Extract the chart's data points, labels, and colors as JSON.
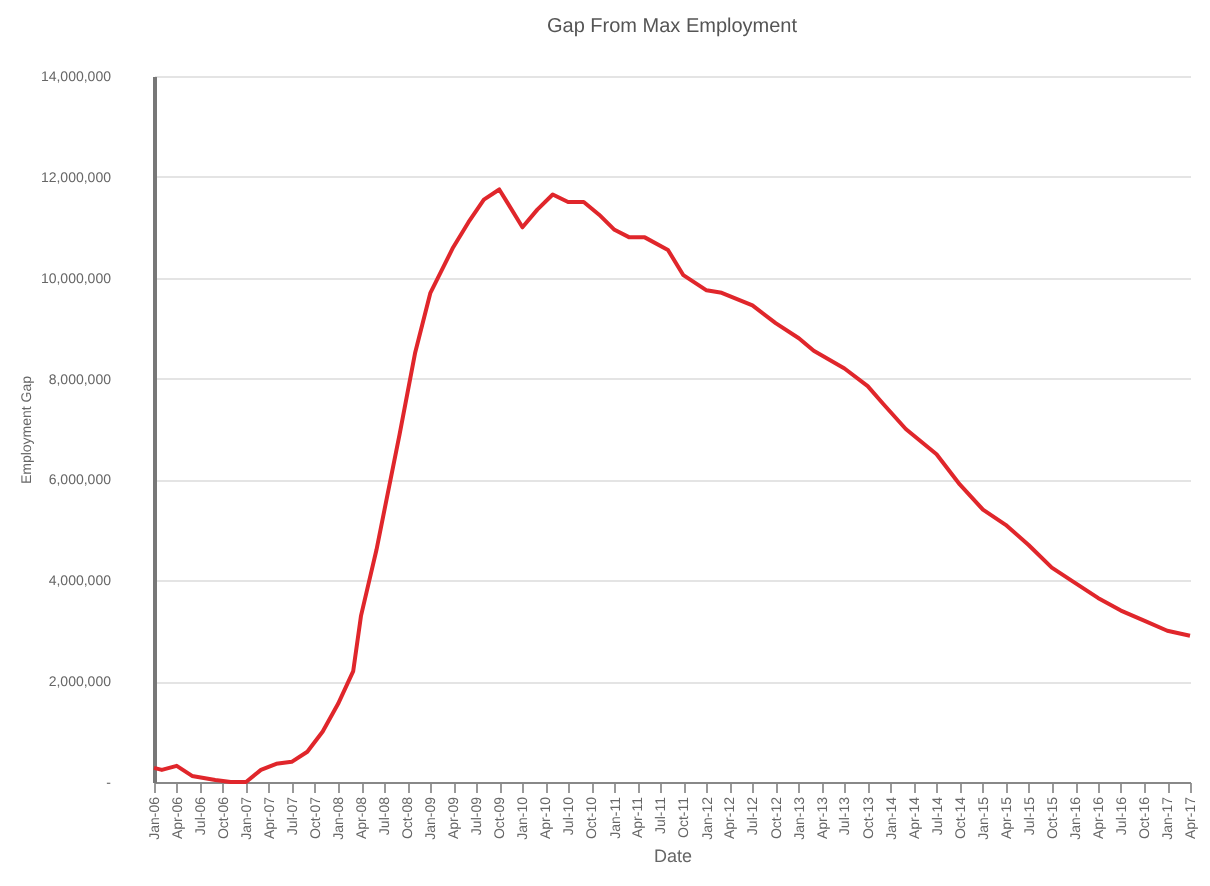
{
  "chart_data": {
    "type": "line",
    "title": "Gap From Max Employment",
    "xlabel": "Date",
    "ylabel": "Employment Gap",
    "x": [
      "2006-01",
      "2006-02",
      "2006-04",
      "2006-06",
      "2006-09",
      "2006-11",
      "2007-01",
      "2007-03",
      "2007-05",
      "2007-07",
      "2007-09",
      "2007-11",
      "2008-01",
      "2008-03",
      "2008-04",
      "2008-06",
      "2008-09",
      "2008-11",
      "2009-01",
      "2009-04",
      "2009-06",
      "2009-08",
      "2009-10",
      "2009-11",
      "2010-01",
      "2010-03",
      "2010-05",
      "2010-07",
      "2010-09",
      "2010-11",
      "2011-01",
      "2011-03",
      "2011-05",
      "2011-08",
      "2011-10",
      "2012-01",
      "2012-03",
      "2012-07",
      "2012-10",
      "2013-01",
      "2013-03",
      "2013-07",
      "2013-10",
      "2013-12",
      "2014-03",
      "2014-07",
      "2014-10",
      "2015-01",
      "2015-04",
      "2015-07",
      "2015-10",
      "2016-01",
      "2016-04",
      "2016-07",
      "2016-10",
      "2017-01",
      "2017-04"
    ],
    "series": [
      {
        "color": "#e0262b",
        "values": [
          280000,
          240000,
          320000,
          120000,
          40000,
          0,
          0,
          240000,
          360000,
          400000,
          600000,
          1000000,
          1550000,
          2200000,
          3300000,
          4600000,
          6900000,
          8500000,
          9700000,
          10600000,
          11100000,
          11550000,
          11750000,
          11500000,
          11000000,
          11350000,
          11650000,
          11500000,
          11500000,
          11250000,
          10950000,
          10800000,
          10800000,
          10550000,
          10050000,
          9750000,
          9700000,
          9450000,
          9100000,
          8800000,
          8550000,
          8200000,
          7850000,
          7500000,
          7000000,
          6500000,
          5900000,
          5400000,
          5100000,
          4700000,
          4250000,
          3950000,
          3650000,
          3400000,
          3200000,
          3000000,
          2900000
        ]
      }
    ],
    "xlim": [
      "2006-01",
      "2017-04"
    ],
    "xticks": [
      {
        "value": "2006-01",
        "label": "Jan-06"
      },
      {
        "value": "2006-04",
        "label": "Apr-06"
      },
      {
        "value": "2006-07",
        "label": "Jul-06"
      },
      {
        "value": "2006-10",
        "label": "Oct-06"
      },
      {
        "value": "2007-01",
        "label": "Jan-07"
      },
      {
        "value": "2007-04",
        "label": "Apr-07"
      },
      {
        "value": "2007-07",
        "label": "Jul-07"
      },
      {
        "value": "2007-10",
        "label": "Oct-07"
      },
      {
        "value": "2008-01",
        "label": "Jan-08"
      },
      {
        "value": "2008-04",
        "label": "Apr-08"
      },
      {
        "value": "2008-07",
        "label": "Jul-08"
      },
      {
        "value": "2008-10",
        "label": "Oct-08"
      },
      {
        "value": "2009-01",
        "label": "Jan-09"
      },
      {
        "value": "2009-04",
        "label": "Apr-09"
      },
      {
        "value": "2009-07",
        "label": "Jul-09"
      },
      {
        "value": "2009-10",
        "label": "Oct-09"
      },
      {
        "value": "2010-01",
        "label": "Jan-10"
      },
      {
        "value": "2010-04",
        "label": "Apr-10"
      },
      {
        "value": "2010-07",
        "label": "Jul-10"
      },
      {
        "value": "2010-10",
        "label": "Oct-10"
      },
      {
        "value": "2011-01",
        "label": "Jan-11"
      },
      {
        "value": "2011-04",
        "label": "Apr-11"
      },
      {
        "value": "2011-07",
        "label": "Jul-11"
      },
      {
        "value": "2011-10",
        "label": "Oct-11"
      },
      {
        "value": "2012-01",
        "label": "Jan-12"
      },
      {
        "value": "2012-04",
        "label": "Apr-12"
      },
      {
        "value": "2012-07",
        "label": "Jul-12"
      },
      {
        "value": "2012-10",
        "label": "Oct-12"
      },
      {
        "value": "2013-01",
        "label": "Jan-13"
      },
      {
        "value": "2013-04",
        "label": "Apr-13"
      },
      {
        "value": "2013-07",
        "label": "Jul-13"
      },
      {
        "value": "2013-10",
        "label": "Oct-13"
      },
      {
        "value": "2014-01",
        "label": "Jan-14"
      },
      {
        "value": "2014-04",
        "label": "Apr-14"
      },
      {
        "value": "2014-07",
        "label": "Jul-14"
      },
      {
        "value": "2014-10",
        "label": "Oct-14"
      },
      {
        "value": "2015-01",
        "label": "Jan-15"
      },
      {
        "value": "2015-04",
        "label": "Apr-15"
      },
      {
        "value": "2015-07",
        "label": "Jul-15"
      },
      {
        "value": "2015-10",
        "label": "Oct-15"
      },
      {
        "value": "2016-01",
        "label": "Jan-16"
      },
      {
        "value": "2016-04",
        "label": "Apr-16"
      },
      {
        "value": "2016-07",
        "label": "Jul-16"
      },
      {
        "value": "2016-10",
        "label": "Oct-16"
      },
      {
        "value": "2017-01",
        "label": "Jan-17"
      },
      {
        "value": "2017-04",
        "label": "Apr-17"
      }
    ],
    "ylim": [
      0,
      14000000
    ],
    "yticks": [
      {
        "value": 0,
        "label": "-"
      },
      {
        "value": 2000000,
        "label": "2,000,000"
      },
      {
        "value": 4000000,
        "label": "4,000,000"
      },
      {
        "value": 6000000,
        "label": "6,000,000"
      },
      {
        "value": 8000000,
        "label": "8,000,000"
      },
      {
        "value": 10000000,
        "label": "10,000,000"
      },
      {
        "value": 12000000,
        "label": "12,000,000"
      },
      {
        "value": 14000000,
        "label": "14,000,000"
      }
    ],
    "grid": "y",
    "line_style": "solid"
  }
}
